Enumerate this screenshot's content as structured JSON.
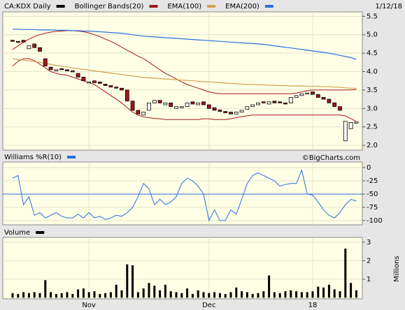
{
  "chart_data": [
    {
      "type": "candlestick",
      "date": "1/12/18",
      "watermark": "©BigCharts.com",
      "ylim": [
        1.87,
        5.62
      ],
      "yticks": [
        {
          "value": 2,
          "label": "2.0"
        },
        2.5,
        {
          "value": 3,
          "label": "3.0"
        },
        3.5,
        {
          "value": 4,
          "label": "4.0"
        },
        4.5,
        {
          "value": 5,
          "label": "5.0"
        },
        5.5
      ],
      "grid": true,
      "up_color": "#ffffff",
      "down_color": "#a01818",
      "series": [
        {
          "name": "CA:KDX Daily",
          "color": "#000000",
          "open": [
            4.85,
            4.82,
            4.85,
            4.62,
            4.75,
            4.65,
            4.35,
            4.12,
            4.02,
            4.08,
            4.05,
            4.02,
            3.95,
            3.85,
            3.7,
            3.75,
            3.72,
            3.66,
            3.62,
            3.58,
            3.55,
            3.5,
            3.2,
            2.95,
            2.82,
            2.95,
            3.15,
            3.22,
            3.1,
            3.15,
            3.0,
            3.02,
            3.05,
            3.18,
            3.1,
            3.18,
            3.1,
            3.02,
            2.96,
            2.92,
            2.9,
            2.85,
            2.9,
            2.98,
            3.05,
            3.1,
            3.18,
            3.12,
            3.2,
            3.18,
            3.15,
            3.15,
            3.3,
            3.35,
            3.4,
            3.45,
            3.38,
            3.3,
            3.25,
            3.15,
            3.05,
            2.12,
            2.45,
            2.6
          ],
          "close": [
            4.82,
            4.8,
            4.8,
            4.7,
            4.65,
            4.55,
            4.15,
            4.05,
            4.05,
            4.05,
            4.02,
            4.0,
            3.85,
            3.75,
            3.72,
            3.7,
            3.68,
            3.62,
            3.58,
            3.55,
            3.5,
            3.2,
            2.95,
            2.85,
            2.9,
            3.15,
            3.22,
            3.15,
            3.15,
            3.05,
            3.05,
            3.05,
            3.15,
            3.12,
            3.15,
            3.1,
            3.0,
            2.95,
            2.92,
            2.88,
            2.85,
            2.9,
            2.95,
            3.05,
            3.1,
            3.15,
            3.15,
            3.18,
            3.15,
            3.15,
            3.12,
            3.3,
            3.35,
            3.4,
            3.42,
            3.38,
            3.3,
            3.25,
            3.15,
            3.05,
            2.95,
            2.65,
            2.62,
            2.63
          ]
        },
        {
          "name": "Bollinger Bands(20)",
          "color": "#a01818",
          "upper": [
            4.6,
            4.7,
            4.8,
            4.88,
            4.95,
            5.0,
            5.04,
            5.07,
            5.09,
            5.1,
            5.11,
            5.11,
            5.1,
            5.08,
            5.05,
            5.0,
            4.95,
            4.88,
            4.82,
            4.75,
            4.66,
            4.58,
            4.5,
            4.42,
            4.35,
            4.25,
            4.15,
            4.05,
            3.95,
            3.88,
            3.8,
            3.72,
            3.65,
            3.6,
            3.55,
            3.5,
            3.45,
            3.42,
            3.4,
            3.4,
            3.4,
            3.4,
            3.4,
            3.4,
            3.4,
            3.4,
            3.4,
            3.4,
            3.4,
            3.4,
            3.4,
            3.4,
            3.42,
            3.45,
            3.48,
            3.5,
            3.5,
            3.5,
            3.5,
            3.5,
            3.5,
            3.5,
            3.5,
            3.52
          ],
          "lower": [
            4.15,
            4.28,
            4.35,
            4.35,
            4.3,
            4.2,
            4.1,
            4.0,
            3.95,
            3.92,
            3.9,
            3.85,
            3.8,
            3.75,
            3.7,
            3.65,
            3.55,
            3.45,
            3.35,
            3.25,
            3.15,
            3.02,
            2.9,
            2.82,
            2.77,
            2.75,
            2.73,
            2.72,
            2.7,
            2.7,
            2.7,
            2.7,
            2.7,
            2.7,
            2.7,
            2.72,
            2.72,
            2.7,
            2.7,
            2.7,
            2.72,
            2.75,
            2.78,
            2.8,
            2.82,
            2.82,
            2.82,
            2.82,
            2.82,
            2.82,
            2.82,
            2.82,
            2.82,
            2.82,
            2.82,
            2.82,
            2.82,
            2.82,
            2.82,
            2.82,
            2.82,
            2.8,
            2.72,
            2.65
          ]
        },
        {
          "name": "EMA(100)",
          "color": "#d4a050",
          "values": [
            4.35,
            4.33,
            4.31,
            4.29,
            4.27,
            4.25,
            4.22,
            4.2,
            4.17,
            4.15,
            4.13,
            4.1,
            4.08,
            4.06,
            4.04,
            4.02,
            4.0,
            3.98,
            3.96,
            3.94,
            3.92,
            3.9,
            3.88,
            3.86,
            3.84,
            3.83,
            3.82,
            3.81,
            3.8,
            3.79,
            3.78,
            3.77,
            3.76,
            3.75,
            3.74,
            3.73,
            3.72,
            3.71,
            3.7,
            3.69,
            3.68,
            3.67,
            3.66,
            3.65,
            3.65,
            3.64,
            3.64,
            3.63,
            3.63,
            3.62,
            3.62,
            3.61,
            3.61,
            3.61,
            3.6,
            3.6,
            3.6,
            3.59,
            3.59,
            3.58,
            3.57,
            3.56,
            3.55,
            3.55
          ]
        },
        {
          "name": "EMA(200)",
          "color": "#2a6fe0",
          "values": [
            5.15,
            5.15,
            5.14,
            5.14,
            5.14,
            5.13,
            5.13,
            5.13,
            5.12,
            5.12,
            5.12,
            5.11,
            5.11,
            5.1,
            5.1,
            5.09,
            5.08,
            5.07,
            5.06,
            5.05,
            5.04,
            5.02,
            5.0,
            4.98,
            4.96,
            4.95,
            4.94,
            4.93,
            4.92,
            4.91,
            4.9,
            4.89,
            4.88,
            4.87,
            4.86,
            4.85,
            4.84,
            4.83,
            4.82,
            4.81,
            4.8,
            4.79,
            4.78,
            4.77,
            4.76,
            4.75,
            4.74,
            4.72,
            4.7,
            4.68,
            4.66,
            4.64,
            4.62,
            4.6,
            4.58,
            4.56,
            4.54,
            4.52,
            4.5,
            4.47,
            4.44,
            4.41,
            4.38,
            4.33
          ]
        }
      ]
    },
    {
      "type": "line",
      "ylim": [
        -108,
        10.5
      ],
      "yticks": [
        0,
        -25,
        -50,
        -75,
        -100
      ],
      "grid": true,
      "reference_line": -50,
      "series": [
        {
          "name": "Williams %R(10)",
          "color": "#2a6fe0",
          "values": [
            -20,
            -15,
            -70,
            -55,
            -90,
            -85,
            -95,
            -90,
            -85,
            -92,
            -95,
            -95,
            -88,
            -95,
            -85,
            -95,
            -92,
            -98,
            -95,
            -90,
            -92,
            -85,
            -75,
            -55,
            -30,
            -40,
            -70,
            -60,
            -70,
            -65,
            -55,
            -30,
            -20,
            -25,
            -35,
            -50,
            -100,
            -80,
            -100,
            -100,
            -80,
            -88,
            -60,
            -30,
            -15,
            -10,
            -15,
            -20,
            -25,
            -35,
            -32,
            -30,
            -30,
            -5,
            -50,
            -52,
            -65,
            -80,
            -90,
            -95,
            -85,
            -70,
            -60,
            -63
          ]
        }
      ]
    },
    {
      "type": "bar",
      "y_label": "Millions",
      "ylim": [
        -0.06,
        3.26
      ],
      "yticks": [
        1,
        2,
        3
      ],
      "grid": true,
      "categories": [
        null,
        null,
        null,
        null,
        null,
        null,
        null,
        null,
        null,
        null,
        null,
        null,
        null,
        null,
        "Nov",
        null,
        null,
        null,
        null,
        null,
        null,
        null,
        null,
        null,
        null,
        null,
        null,
        null,
        null,
        null,
        null,
        null,
        null,
        null,
        null,
        null,
        "Dec",
        null,
        null,
        null,
        null,
        null,
        null,
        null,
        null,
        null,
        null,
        null,
        null,
        null,
        null,
        null,
        null,
        null,
        null,
        "18",
        null,
        null,
        null,
        null,
        null,
        null,
        null,
        null
      ],
      "series": [
        {
          "name": "Volume",
          "color": "#000000",
          "values": [
            0.25,
            0.2,
            0.3,
            0.25,
            0.3,
            0.25,
            0.95,
            0.3,
            0.2,
            0.25,
            0.3,
            0.2,
            0.45,
            0.5,
            0.3,
            0.35,
            0.2,
            0.25,
            0.3,
            0.7,
            0.4,
            1.8,
            1.75,
            0.3,
            0.5,
            0.8,
            0.65,
            0.4,
            0.7,
            0.35,
            0.3,
            0.25,
            0.5,
            0.2,
            0.4,
            0.3,
            0.25,
            0.3,
            0.25,
            0.2,
            0.3,
            0.55,
            0.35,
            0.3,
            0.2,
            0.25,
            0.35,
            1.2,
            0.3,
            0.25,
            0.35,
            0.4,
            0.35,
            0.3,
            0.3,
            0.35,
            0.6,
            0.55,
            0.7,
            0.45,
            0.35,
            2.65,
            0.8,
            0.4
          ]
        }
      ]
    }
  ]
}
